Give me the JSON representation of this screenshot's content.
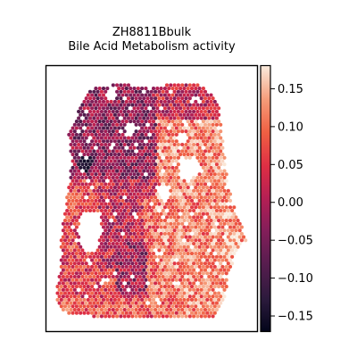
{
  "chart_data": {
    "type": "heatmap",
    "title": "ZH8811Bbulk",
    "subtitle": "Bile Acid Metabolism activity",
    "colormap": "rocket",
    "value_range": [
      -0.17,
      0.18
    ],
    "colorbar_ticks": [
      0.15,
      0.1,
      0.05,
      0.0,
      -0.05,
      -0.1,
      -0.15
    ],
    "colorbar_tick_labels": [
      "0.15",
      "0.10",
      "0.05",
      "0.00",
      "−0.05",
      "−0.10",
      "−0.15"
    ],
    "axes_ticks_visible": false,
    "regions": [
      {
        "name": "left-upper tissue",
        "mean_activity": -0.04
      },
      {
        "name": "right tissue lobe",
        "mean_activity": 0.11
      },
      {
        "name": "lower-left tissue",
        "mean_activity": 0.05
      },
      {
        "name": "bottom rim",
        "mean_activity": 0.07
      },
      {
        "name": "dark spot",
        "mean_activity": -0.16
      }
    ]
  }
}
